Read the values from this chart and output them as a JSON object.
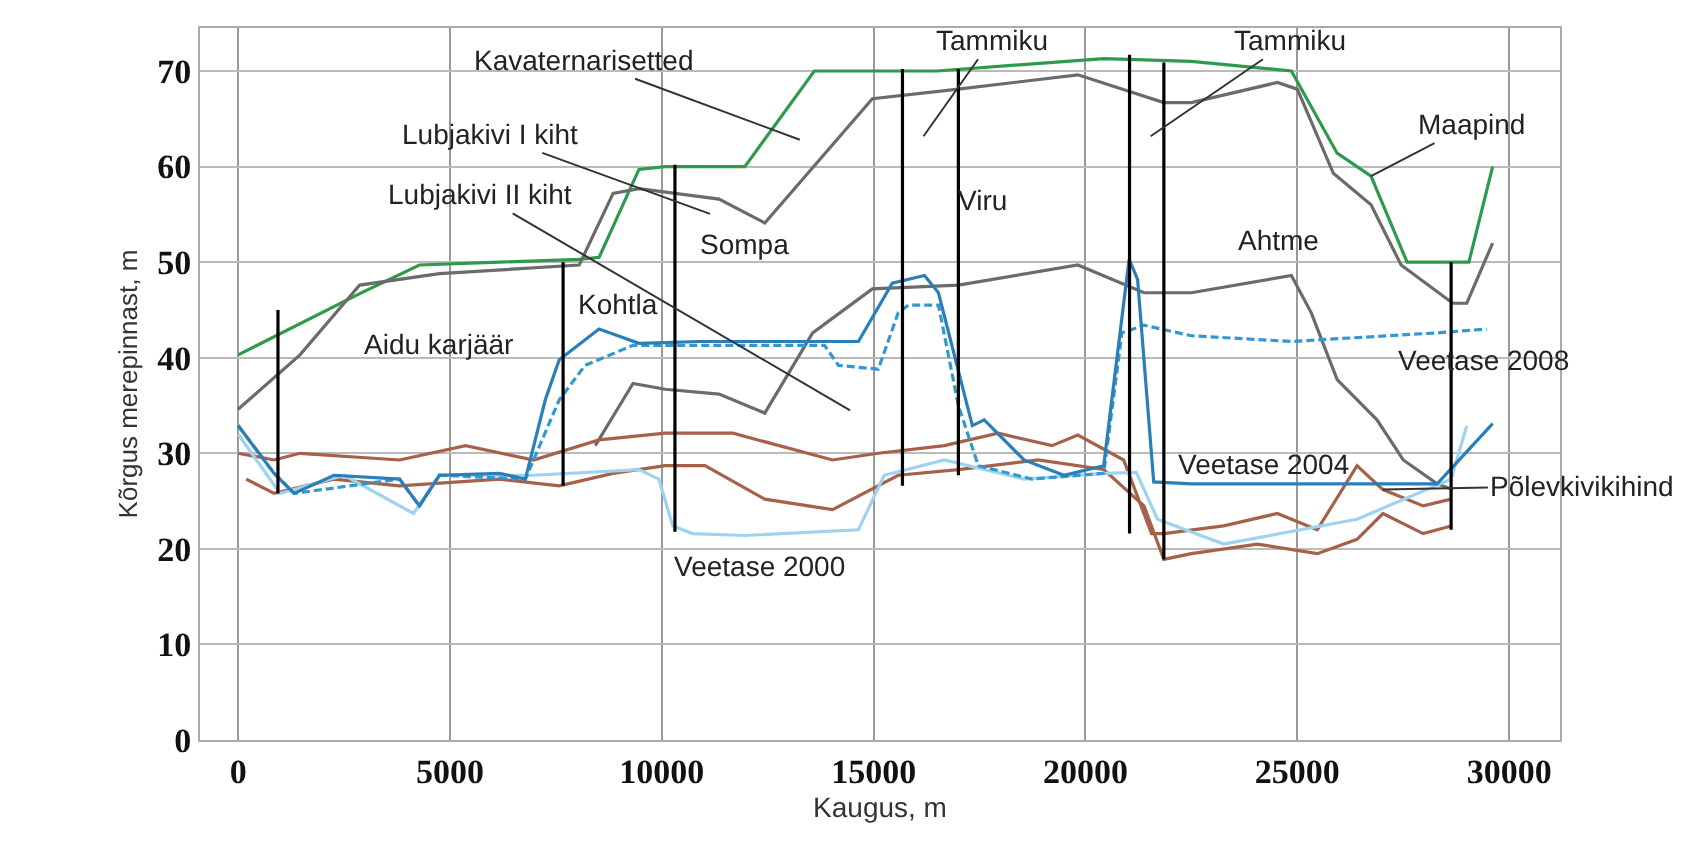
{
  "chart_data": {
    "type": "line",
    "xlabel": "Kaugus, m",
    "ylabel": "Kõrgus merepinnast, m",
    "xlim": [
      -900,
      31200
    ],
    "ylim": [
      0,
      74.5
    ],
    "xticks": [
      0,
      5000,
      10000,
      15000,
      20000,
      25000,
      30000
    ],
    "yticks": [
      0,
      10,
      20,
      30,
      40,
      50,
      60,
      70
    ],
    "grid": true,
    "marker": "none",
    "series": [
      {
        "color": "#2e9a4e",
        "x": [
          0,
          2870,
          4280,
          6170,
          8050,
          8520,
          9460,
          10080,
          11960,
          13600,
          16500,
          20430,
          22500,
          24860,
          25940,
          26740,
          27590,
          29050,
          29610
        ],
        "values": [
          40.3,
          46.7,
          49.7,
          50,
          50.3,
          50.5,
          59.7,
          60,
          60,
          70,
          70,
          71.3,
          71,
          70,
          61.4,
          59,
          50,
          50,
          60
        ]
      },
      {
        "color": "#6b6b6b",
        "x": [
          0,
          1460,
          2870,
          4750,
          8050,
          8850,
          9460,
          11350,
          12430,
          14970,
          17000,
          19820,
          21850,
          22500,
          24530,
          25000,
          25850,
          26740,
          27450,
          28670,
          29000,
          29610
        ],
        "values": [
          34.6,
          40.3,
          47.6,
          48.8,
          49.7,
          57.2,
          57.7,
          56.6,
          54.1,
          67.1,
          68.1,
          69.6,
          66.7,
          66.7,
          68.8,
          68.1,
          59.3,
          56,
          49.7,
          45.7,
          45.7,
          52
        ]
      },
      {
        "color": "#6b6b6b",
        "x": [
          8430,
          9320,
          10080,
          11350,
          12430,
          13560,
          14970,
          17000,
          19820,
          21380,
          22500,
          24860,
          25330,
          25940,
          26880,
          27500,
          28300,
          28670
        ],
        "values": [
          30.8,
          37.3,
          36.7,
          36.2,
          34.2,
          42.6,
          47.2,
          47.6,
          49.7,
          46.8,
          46.8,
          48.6,
          44.7,
          37.7,
          33.5,
          29.3,
          26.8,
          26.2
        ]
      },
      {
        "color": "#a5614a",
        "x": [
          0,
          850,
          1460,
          3810,
          5370,
          6970,
          8520,
          10080,
          11680,
          14030,
          15110,
          16670,
          17940,
          19210,
          19820,
          20900,
          21560,
          21850,
          23260,
          24530,
          25470,
          26410,
          27020,
          27970,
          28630
        ],
        "values": [
          30,
          29.3,
          30,
          29.3,
          30.8,
          29.3,
          31.4,
          32.1,
          32.1,
          29.3,
          30,
          30.8,
          32.1,
          30.8,
          31.9,
          29.3,
          21.6,
          21.6,
          22.4,
          23.7,
          22,
          28.7,
          26.2,
          24.5,
          25.2
        ]
      },
      {
        "color": "#a5614a",
        "x": [
          190,
          850,
          2260,
          3810,
          6170,
          7580,
          8850,
          10080,
          11020,
          12430,
          14030,
          15580,
          17000,
          18880,
          20430,
          21380,
          21850,
          22500,
          24060,
          25470,
          26410,
          27020,
          27970,
          28630
        ],
        "values": [
          27.3,
          25.8,
          27.3,
          26.6,
          27.3,
          26.6,
          27.9,
          28.7,
          28.7,
          25.2,
          24.1,
          27.7,
          28.3,
          29.3,
          28.3,
          24.5,
          18.9,
          19.5,
          20.5,
          19.5,
          21,
          23.7,
          21.6,
          22.4
        ]
      },
      {
        "color": "#9dd3ef",
        "x": [
          0,
          990,
          2500,
          4140,
          4750,
          6970,
          9460,
          9930,
          10260,
          10730,
          11960,
          14640,
          15250,
          16670,
          18550,
          20430,
          21200,
          21700,
          23260,
          26410,
          28630,
          29000
        ],
        "values": [
          32,
          25.8,
          27.7,
          23.7,
          27.7,
          27.7,
          28.3,
          27.3,
          22.4,
          21.6,
          21.4,
          22,
          27.7,
          29.3,
          27.3,
          27.9,
          28,
          23.1,
          20.5,
          23.1,
          27.3,
          32.9
        ]
      },
      {
        "color": "#3498d0",
        "line_style": "dashed",
        "x": [
          0,
          850,
          1320,
          3810,
          4280,
          4750,
          6780,
          7580,
          8190,
          9320,
          13840,
          14170,
          15110,
          15580,
          15820,
          16530,
          17000,
          17470,
          18740,
          20430,
          20860,
          21380,
          22500,
          24860,
          28300,
          29470
        ],
        "values": [
          32.9,
          27.9,
          25.8,
          27.3,
          24.5,
          27.7,
          27.3,
          35.6,
          39.2,
          41.3,
          41.3,
          39.2,
          38.8,
          44.7,
          45.5,
          45.5,
          35,
          28.7,
          27.3,
          27.9,
          42.6,
          43.4,
          42.3,
          41.7,
          42.6,
          43
        ]
      },
      {
        "color": "#2a7fb8",
        "x": [
          0,
          850,
          1320,
          2260,
          3810,
          4280,
          4750,
          6170,
          6780,
          7250,
          7580,
          8520,
          9460,
          10880,
          14640,
          15440,
          16200,
          16530,
          17330,
          17610,
          18550,
          19490,
          20430,
          21030,
          21230,
          21610,
          22500,
          28300,
          29610
        ],
        "values": [
          32.9,
          27.9,
          25.8,
          27.7,
          27.3,
          24.5,
          27.7,
          27.9,
          27.3,
          35.6,
          39.8,
          43,
          41.5,
          41.7,
          41.7,
          47.8,
          48.6,
          46.8,
          32.9,
          33.5,
          29.3,
          27.7,
          28.7,
          50.3,
          48.2,
          27,
          26.8,
          26.8,
          33.1
        ]
      },
      {
        "color": "#000000",
        "x": [
          940,
          940
        ],
        "values": [
          45,
          25.8
        ]
      },
      {
        "color": "#000000",
        "x": [
          7670,
          7670
        ],
        "values": [
          50,
          26.6
        ]
      },
      {
        "color": "#000000",
        "x": [
          10310,
          10310
        ],
        "values": [
          60.2,
          21.8
        ]
      },
      {
        "color": "#000000",
        "x": [
          15680,
          15680
        ],
        "values": [
          70.2,
          26.6
        ]
      },
      {
        "color": "#000000",
        "x": [
          17000,
          17000
        ],
        "values": [
          70.2,
          27.7
        ]
      },
      {
        "color": "#000000",
        "x": [
          21040,
          21040
        ],
        "values": [
          71.7,
          21.6
        ]
      },
      {
        "color": "#000000",
        "x": [
          21850,
          21850
        ],
        "values": [
          70.9,
          18.9
        ]
      },
      {
        "color": "#000000",
        "x": [
          28630,
          28630
        ],
        "values": [
          50,
          22
        ]
      }
    ],
    "annotations": [
      "Kavaternarisetted",
      "Lubjakivi I kiht",
      "Lubjakivi II kiht",
      "Tammiku",
      "Tammiku",
      {
        "text": "Maapind",
        "x": 26740,
        "y": 59
      },
      {
        "text": "Põlevkivikihind",
        "x": 27020,
        "y": 26.2
      },
      "Aidu karjäär",
      "Kohtla",
      "Sompa",
      "Viru",
      "Ahtme",
      "Veetase 2000",
      "Veetase 2004",
      "Veetase 2008"
    ]
  }
}
